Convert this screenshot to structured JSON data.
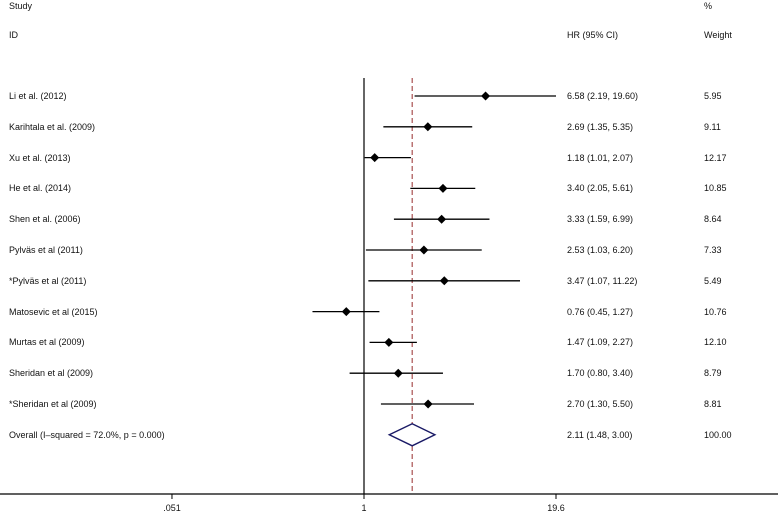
{
  "header": {
    "study_col": "Study",
    "id_col": "ID",
    "hr_col": "HR (95% CI)",
    "weight_top": "%",
    "weight_col": "Weight"
  },
  "chart_data": {
    "type": "forest",
    "x_scale": "log",
    "xlim": [
      0.051,
      19.6
    ],
    "x_ticks": [
      ".051",
      "1",
      "19.6"
    ],
    "reference_line": 1,
    "overall_line": 2.11,
    "grid": false,
    "studies": [
      {
        "label": "Li et al.  (2012)",
        "hr": 6.58,
        "lo": 2.19,
        "hi": 19.6,
        "ci_text": "6.58 (2.19, 19.60)",
        "weight": "5.95"
      },
      {
        "label": "Karihtala et al.  (2009)",
        "hr": 2.69,
        "lo": 1.35,
        "hi": 5.35,
        "ci_text": "2.69 (1.35, 5.35)",
        "weight": "9.11"
      },
      {
        "label": "Xu et al.  (2013)",
        "hr": 1.18,
        "lo": 1.01,
        "hi": 2.07,
        "ci_text": "1.18 (1.01, 2.07)",
        "weight": "12.17"
      },
      {
        "label": "He et al.  (2014)",
        "hr": 3.4,
        "lo": 2.05,
        "hi": 5.61,
        "ci_text": "3.40 (2.05, 5.61)",
        "weight": "10.85"
      },
      {
        "label": "Shen et al.  (2006)",
        "hr": 3.33,
        "lo": 1.59,
        "hi": 6.99,
        "ci_text": "3.33 (1.59, 6.99)",
        "weight": "8.64"
      },
      {
        "label": "Pylväs et al (2011)",
        "hr": 2.53,
        "lo": 1.03,
        "hi": 6.2,
        "ci_text": "2.53 (1.03, 6.20)",
        "weight": "7.33"
      },
      {
        "label": "*Pylväs et al (2011)",
        "hr": 3.47,
        "lo": 1.07,
        "hi": 11.22,
        "ci_text": "3.47 (1.07, 11.22)",
        "weight": "5.49"
      },
      {
        "label": "Matosevic et al  (2015)",
        "hr": 0.76,
        "lo": 0.45,
        "hi": 1.27,
        "ci_text": "0.76 (0.45, 1.27)",
        "weight": "10.76"
      },
      {
        "label": "Murtas et al (2009)",
        "hr": 1.47,
        "lo": 1.09,
        "hi": 2.27,
        "ci_text": "1.47 (1.09, 2.27)",
        "weight": "12.10"
      },
      {
        "label": "Sheridan et al (2009)",
        "hr": 1.7,
        "lo": 0.8,
        "hi": 3.4,
        "ci_text": "1.70 (0.80, 3.40)",
        "weight": "8.79"
      },
      {
        "label": "*Sheridan et al (2009)",
        "hr": 2.7,
        "lo": 1.3,
        "hi": 5.5,
        "ci_text": "2.70 (1.30, 5.50)",
        "weight": "8.81"
      }
    ],
    "overall": {
      "label": "Overall  (I–squared = 72.0%, p = 0.000)",
      "hr": 2.11,
      "lo": 1.48,
      "hi": 3.0,
      "ci_text": "2.11 (1.48, 3.00)",
      "weight": "100.00"
    },
    "colors": {
      "marker": "#000000",
      "overall_diamond": "#1a1a66",
      "overall_line": "#a04040"
    }
  }
}
